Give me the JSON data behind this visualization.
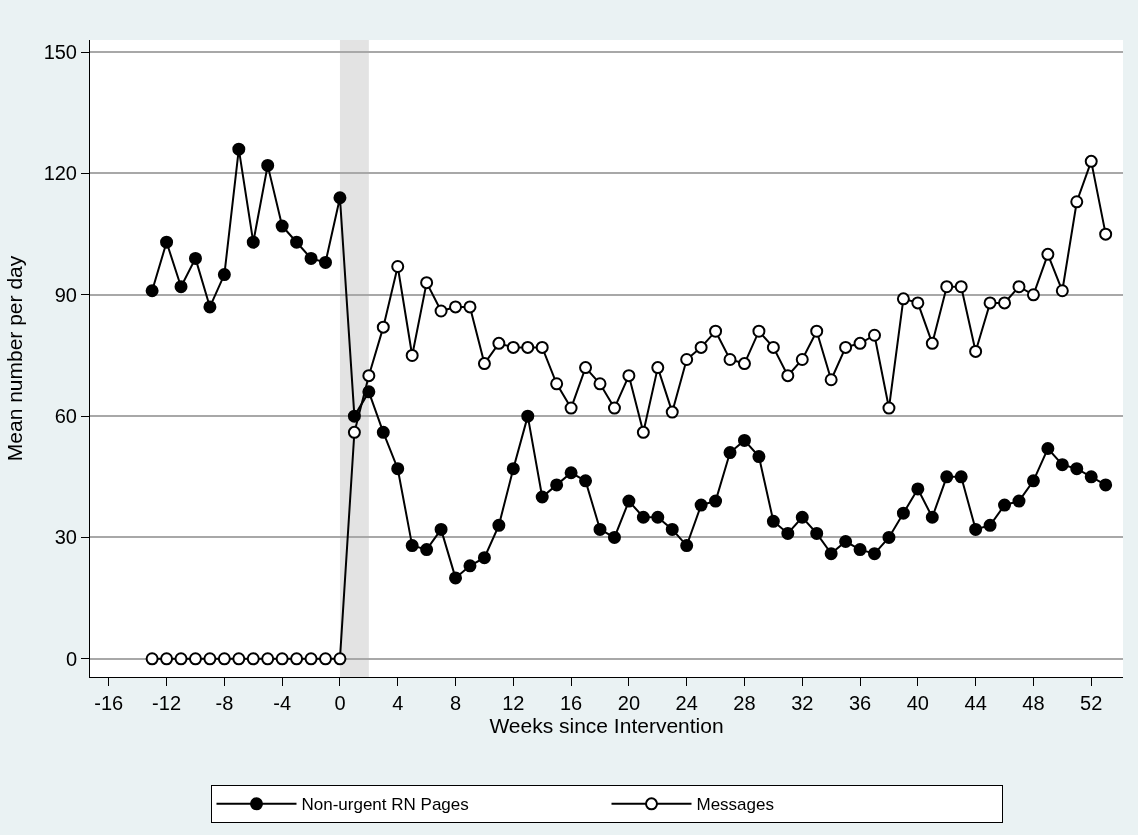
{
  "chart_data": {
    "type": "line",
    "xlabel": "Weeks since Intervention",
    "ylabel": "Mean number per day",
    "x": [
      -13,
      -12,
      -11,
      -10,
      -9,
      -8,
      -7,
      -6,
      -5,
      -4,
      -3,
      -2,
      -1,
      0,
      1,
      2,
      3,
      4,
      5,
      6,
      7,
      8,
      9,
      10,
      11,
      12,
      13,
      14,
      15,
      16,
      17,
      18,
      19,
      20,
      21,
      22,
      23,
      24,
      25,
      26,
      27,
      28,
      29,
      30,
      31,
      32,
      33,
      34,
      35,
      36,
      37,
      38,
      39,
      40,
      41,
      42,
      43,
      44,
      45,
      46,
      47,
      48,
      49,
      50,
      51,
      52,
      53
    ],
    "series": [
      {
        "name": "Non-urgent RN Pages",
        "color": "#000000",
        "values": [
          91,
          103,
          92,
          99,
          87,
          95,
          126,
          103,
          122,
          107,
          103,
          99,
          98,
          114,
          60,
          66,
          56,
          47,
          28,
          27,
          32,
          20,
          23,
          25,
          33,
          47,
          60,
          40,
          43,
          46,
          44,
          32,
          30,
          39,
          35,
          35,
          32,
          28,
          38,
          39,
          51,
          54,
          50,
          34,
          31,
          35,
          31,
          26,
          29,
          27,
          26,
          30,
          36,
          42,
          35,
          45,
          45,
          32,
          33,
          38,
          39,
          44,
          52,
          48,
          47,
          45,
          43
        ]
      },
      {
        "name": "Messages",
        "color": "#000000",
        "values": [
          0,
          0,
          0,
          0,
          0,
          0,
          0,
          0,
          0,
          0,
          0,
          0,
          0,
          0,
          56,
          70,
          82,
          97,
          75,
          93,
          86,
          87,
          87,
          73,
          78,
          77,
          77,
          77,
          68,
          62,
          72,
          68,
          62,
          70,
          56,
          72,
          61,
          74,
          77,
          81,
          74,
          73,
          81,
          77,
          70,
          74,
          81,
          69,
          77,
          78,
          80,
          62,
          89,
          88,
          78,
          92,
          92,
          76,
          88,
          88,
          92,
          90,
          100,
          91,
          113,
          123,
          105
        ]
      }
    ],
    "bands": [
      {
        "axis": "x",
        "from": 0,
        "to": 2,
        "color": "#e3e3e3"
      }
    ],
    "xlim": [
      -17.3,
      54.2
    ],
    "xticks": [
      -16,
      -12,
      -8,
      -4,
      0,
      4,
      8,
      12,
      16,
      20,
      24,
      28,
      32,
      36,
      40,
      44,
      48,
      52
    ],
    "ylim": [
      -4.5,
      153
    ],
    "yticks": [
      0,
      30,
      60,
      90,
      120,
      150
    ],
    "grid": "y",
    "legend": "bottom",
    "marker": "circle",
    "line_style": "solid"
  }
}
